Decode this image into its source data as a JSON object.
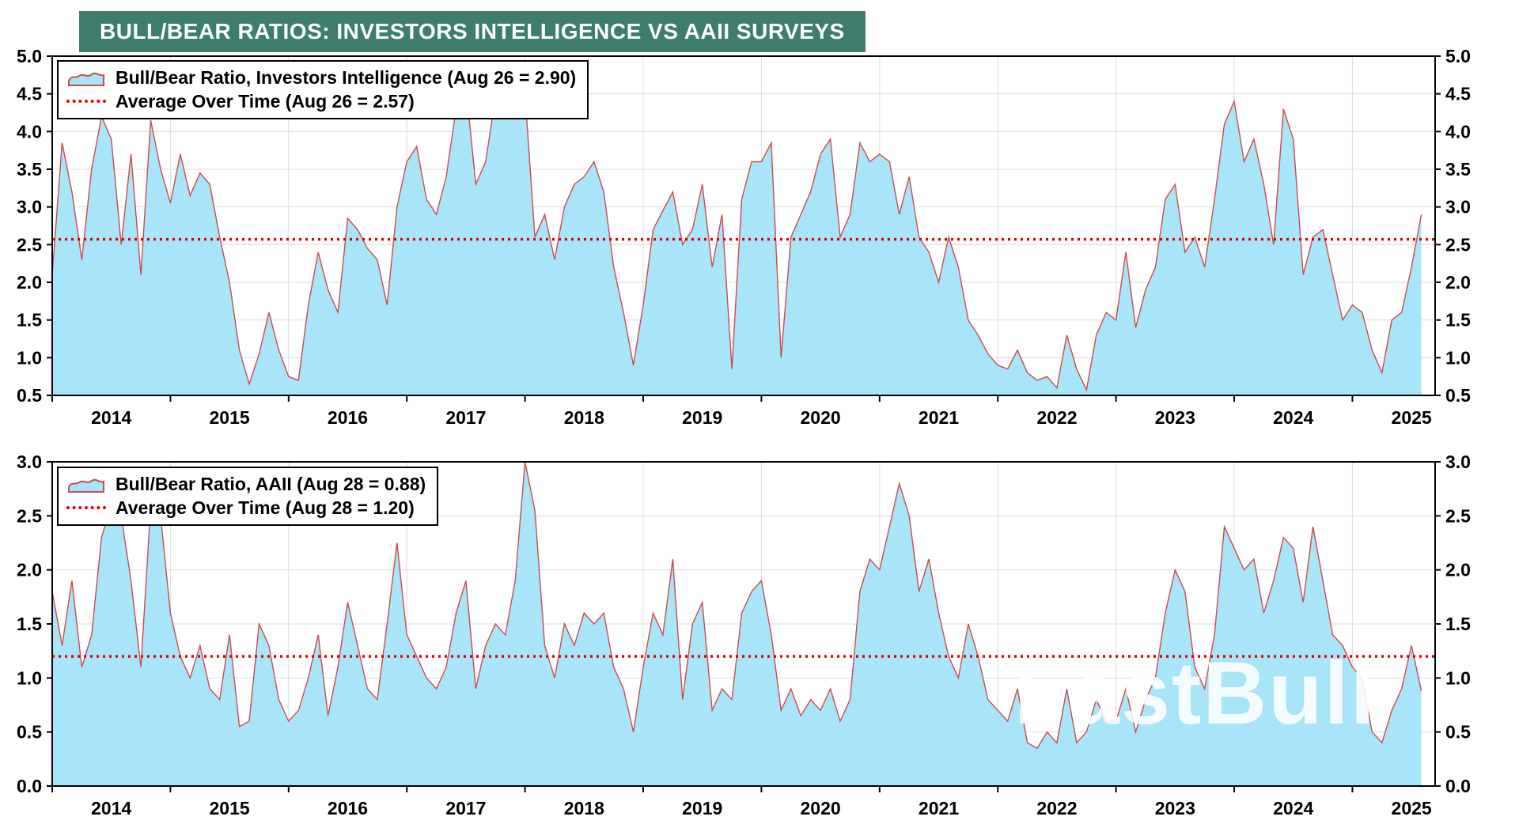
{
  "title": "BULL/BEAR RATIOS: INVESTORS INTELLIGENCE VS AAII SURVEYS",
  "watermark": "FastBull",
  "colors": {
    "title_bg": "#3E7C6E",
    "title_text": "#FFFFFF",
    "area_fill": "#A9E5F8",
    "series_line": "#CB4B4B",
    "average_line": "#E00000",
    "grid": "#DCDCDC",
    "axis": "#000000"
  },
  "chart_data": [
    {
      "type": "area",
      "name": "investors-intelligence",
      "legend": [
        {
          "label": "Bull/Bear Ratio, Investors Intelligence (Aug 26 = 2.90)",
          "swatch": "area"
        },
        {
          "label": "Average Over Time (Aug 26 = 2.57)",
          "swatch": "dotted-line"
        }
      ],
      "latest": {
        "date": "Aug 26",
        "value": 2.9
      },
      "average_value": 2.57,
      "ylim": [
        0.5,
        5.0
      ],
      "ytick_step": 0.5,
      "xlim": [
        2014.0,
        2025.7
      ],
      "x_year_labels": [
        2014,
        2015,
        2016,
        2017,
        2018,
        2019,
        2020,
        2021,
        2022,
        2023,
        2024,
        2025
      ],
      "x_start": 2014.0,
      "x_step": 0.0833333,
      "values": [
        2.1,
        3.85,
        3.2,
        2.3,
        3.5,
        4.2,
        3.9,
        2.5,
        3.7,
        2.1,
        4.15,
        3.5,
        3.05,
        3.7,
        3.15,
        3.45,
        3.3,
        2.6,
        2.0,
        1.1,
        0.65,
        1.05,
        1.6,
        1.1,
        0.75,
        0.7,
        1.7,
        2.4,
        1.9,
        1.6,
        2.85,
        2.7,
        2.45,
        2.3,
        1.7,
        3.0,
        3.6,
        3.8,
        3.1,
        2.9,
        3.4,
        4.3,
        4.6,
        3.3,
        3.6,
        4.45,
        4.2,
        4.35,
        4.5,
        2.6,
        2.9,
        2.3,
        3.0,
        3.3,
        3.4,
        3.6,
        3.2,
        2.2,
        1.6,
        0.9,
        1.7,
        2.7,
        2.95,
        3.2,
        2.5,
        2.7,
        3.3,
        2.2,
        2.9,
        0.85,
        3.1,
        3.6,
        3.6,
        3.85,
        1.0,
        2.6,
        2.9,
        3.2,
        3.7,
        3.9,
        2.6,
        2.9,
        3.85,
        3.6,
        3.7,
        3.6,
        2.9,
        3.4,
        2.6,
        2.4,
        2.0,
        2.6,
        2.2,
        1.5,
        1.3,
        1.05,
        0.9,
        0.85,
        1.1,
        0.8,
        0.7,
        0.75,
        0.6,
        1.3,
        0.85,
        0.57,
        1.3,
        1.6,
        1.5,
        2.4,
        1.4,
        1.9,
        2.2,
        3.1,
        3.3,
        2.4,
        2.6,
        2.2,
        3.1,
        4.1,
        4.4,
        3.6,
        3.9,
        3.3,
        2.5,
        4.3,
        3.9,
        2.1,
        2.6,
        2.7,
        2.1,
        1.5,
        1.7,
        1.6,
        1.1,
        0.8,
        1.5,
        1.6,
        2.2,
        2.9
      ]
    },
    {
      "type": "area",
      "name": "aaii",
      "legend": [
        {
          "label": "Bull/Bear Ratio, AAII (Aug 28 = 0.88)",
          "swatch": "area"
        },
        {
          "label": "Average Over Time (Aug 28 = 1.20)",
          "swatch": "dotted-line"
        }
      ],
      "latest": {
        "date": "Aug 28",
        "value": 0.88
      },
      "average_value": 1.2,
      "ylim": [
        0.0,
        3.0
      ],
      "ytick_step": 0.5,
      "xlim": [
        2014.0,
        2025.7
      ],
      "x_year_labels": [
        2014,
        2015,
        2016,
        2017,
        2018,
        2019,
        2020,
        2021,
        2022,
        2023,
        2024,
        2025
      ],
      "x_start": 2014.0,
      "x_step": 0.0833333,
      "values": [
        1.8,
        1.3,
        1.9,
        1.1,
        1.4,
        2.3,
        2.6,
        2.5,
        1.9,
        1.1,
        2.6,
        2.5,
        1.6,
        1.2,
        1.0,
        1.3,
        0.9,
        0.8,
        1.4,
        0.55,
        0.6,
        1.5,
        1.3,
        0.8,
        0.6,
        0.7,
        1.0,
        1.4,
        0.65,
        1.1,
        1.7,
        1.3,
        0.9,
        0.8,
        1.5,
        2.25,
        1.4,
        1.2,
        1.0,
        0.9,
        1.1,
        1.6,
        1.9,
        0.9,
        1.3,
        1.5,
        1.4,
        1.9,
        3.0,
        2.55,
        1.3,
        1.0,
        1.5,
        1.3,
        1.6,
        1.5,
        1.6,
        1.1,
        0.9,
        0.5,
        1.1,
        1.6,
        1.4,
        2.1,
        0.8,
        1.5,
        1.7,
        0.7,
        0.9,
        0.8,
        1.6,
        1.8,
        1.9,
        1.4,
        0.7,
        0.9,
        0.65,
        0.8,
        0.7,
        0.9,
        0.6,
        0.8,
        1.8,
        2.1,
        2.0,
        2.4,
        2.8,
        2.5,
        1.8,
        2.1,
        1.6,
        1.2,
        1.0,
        1.5,
        1.2,
        0.8,
        0.7,
        0.6,
        0.9,
        0.4,
        0.35,
        0.5,
        0.4,
        0.9,
        0.4,
        0.5,
        0.8,
        0.6,
        0.6,
        0.9,
        0.5,
        0.8,
        1.0,
        1.6,
        2.0,
        1.8,
        1.1,
        0.9,
        1.4,
        2.4,
        2.2,
        2.0,
        2.1,
        1.6,
        1.9,
        2.3,
        2.2,
        1.7,
        2.4,
        1.9,
        1.4,
        1.3,
        1.1,
        1.0,
        0.5,
        0.4,
        0.7,
        0.9,
        1.3,
        0.88
      ]
    }
  ]
}
